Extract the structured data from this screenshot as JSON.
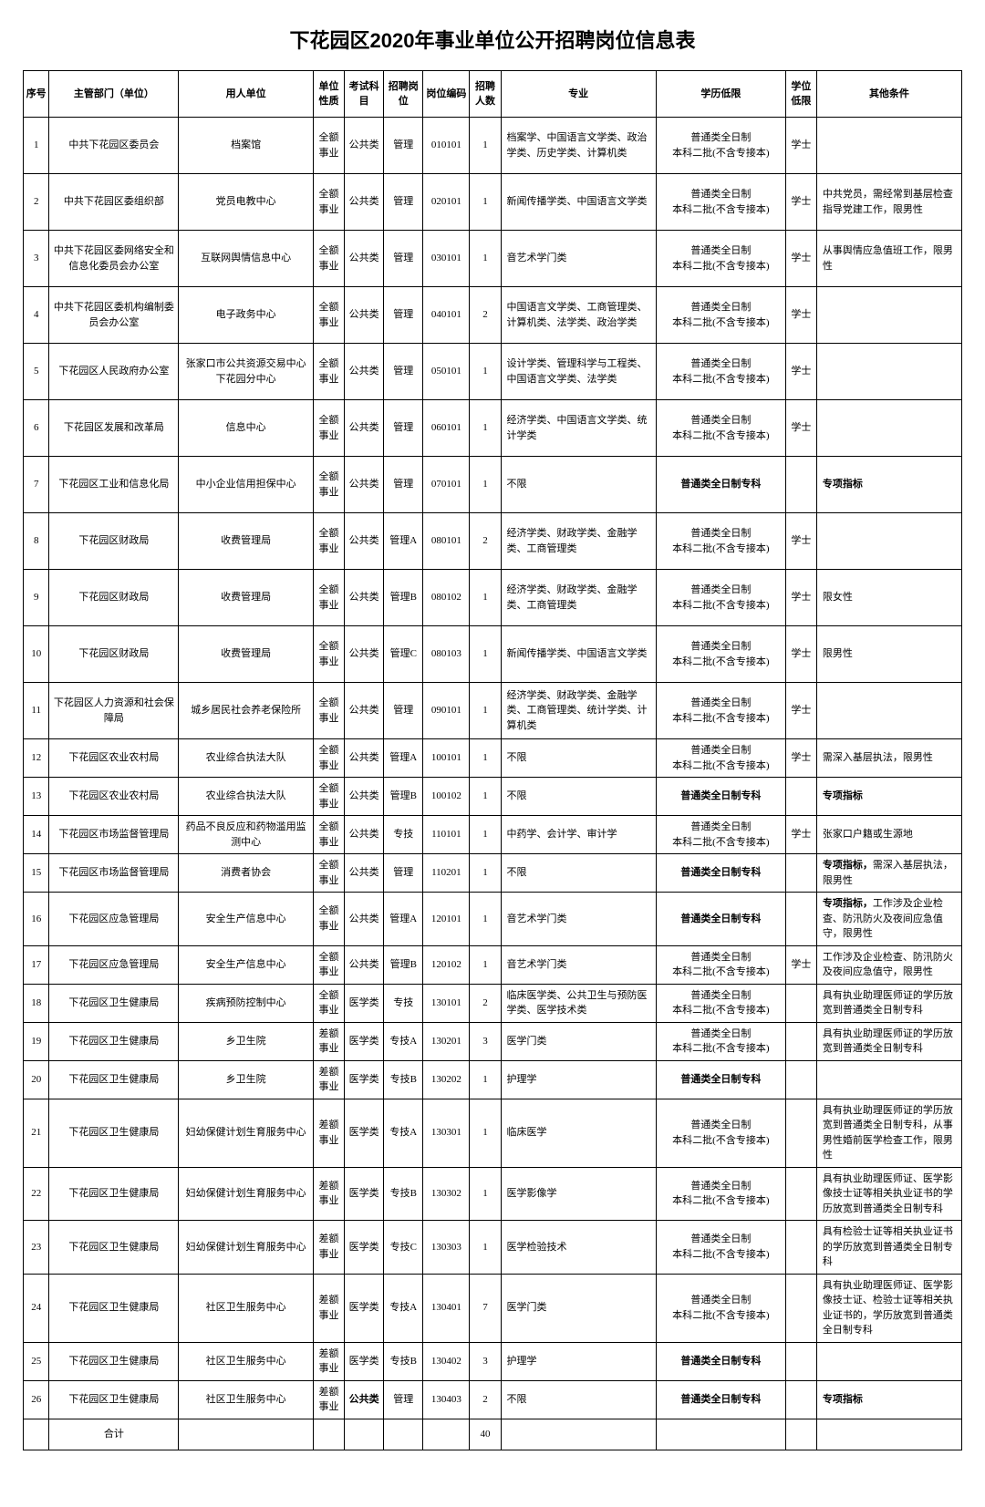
{
  "title": "下花园区2020年事业单位公开招聘岗位信息表",
  "headers": {
    "seq": "序号",
    "dept": "主管部门（单位）",
    "employer": "用人单位",
    "nature": "单位性质",
    "subject": "考试科目",
    "position": "招聘岗位",
    "code": "岗位编码",
    "count": "招聘人数",
    "major": "专业",
    "education": "学历低限",
    "degree": "学位低限",
    "other": "其他条件"
  },
  "edu_normal": "普通类全日制\n本科二批(不含专接本)",
  "edu_zhuanke_bold": "普通类全日制专科",
  "rows": [
    {
      "seq": "1",
      "dept": "中共下花园区委员会",
      "employer": "档案馆",
      "nature": "全额事业",
      "subject": "公共类",
      "position": "管理",
      "code": "010101",
      "count": "1",
      "major": "档案学、中国语言文学类、政治学类、历史学类、计算机类",
      "edu": "normal",
      "degree": "学士",
      "other": ""
    },
    {
      "seq": "2",
      "dept": "中共下花园区委组织部",
      "employer": "党员电教中心",
      "nature": "全额事业",
      "subject": "公共类",
      "position": "管理",
      "code": "020101",
      "count": "1",
      "major": "新闻传播学类、中国语言文学类",
      "edu": "normal",
      "degree": "学士",
      "other": "中共党员，需经常到基层检查指导党建工作，限男性"
    },
    {
      "seq": "3",
      "dept": "中共下花园区委网络安全和信息化委员会办公室",
      "employer": "互联网舆情信息中心",
      "nature": "全额事业",
      "subject": "公共类",
      "position": "管理",
      "code": "030101",
      "count": "1",
      "major": "音艺术学门类",
      "edu": "normal",
      "degree": "学士",
      "other": "从事舆情应急值班工作，限男性"
    },
    {
      "seq": "4",
      "dept": "中共下花园区委机构编制委员会办公室",
      "employer": "电子政务中心",
      "nature": "全额事业",
      "subject": "公共类",
      "position": "管理",
      "code": "040101",
      "count": "2",
      "major": "中国语言文学类、工商管理类、计算机类、法学类、政治学类",
      "edu": "normal",
      "degree": "学士",
      "other": ""
    },
    {
      "seq": "5",
      "dept": "下花园区人民政府办公室",
      "employer": "张家口市公共资源交易中心下花园分中心",
      "nature": "全额事业",
      "subject": "公共类",
      "position": "管理",
      "code": "050101",
      "count": "1",
      "major": "设计学类、管理科学与工程类、中国语言文学类、法学类",
      "edu": "normal",
      "degree": "学士",
      "other": ""
    },
    {
      "seq": "6",
      "dept": "下花园区发展和改革局",
      "employer": "信息中心",
      "nature": "全额事业",
      "subject": "公共类",
      "position": "管理",
      "code": "060101",
      "count": "1",
      "major": "经济学类、中国语言文学类、统计学类",
      "edu": "normal",
      "degree": "学士",
      "other": ""
    },
    {
      "seq": "7",
      "dept": "下花园区工业和信息化局",
      "employer": "中小企业信用担保中心",
      "nature": "全额事业",
      "subject": "公共类",
      "position": "管理",
      "code": "070101",
      "count": "1",
      "major": "不限",
      "edu": "zhuanke",
      "degree": "",
      "other": "专项指标",
      "other_bold": true
    },
    {
      "seq": "8",
      "dept": "下花园区财政局",
      "employer": "收费管理局",
      "nature": "全额事业",
      "subject": "公共类",
      "position": "管理A",
      "code": "080101",
      "count": "2",
      "major": "经济学类、财政学类、金融学类、工商管理类",
      "edu": "normal",
      "degree": "学士",
      "other": ""
    },
    {
      "seq": "9",
      "dept": "下花园区财政局",
      "employer": "收费管理局",
      "nature": "全额事业",
      "subject": "公共类",
      "position": "管理B",
      "code": "080102",
      "count": "1",
      "major": "经济学类、财政学类、金融学类、工商管理类",
      "edu": "normal",
      "degree": "学士",
      "other": "限女性"
    },
    {
      "seq": "10",
      "dept": "下花园区财政局",
      "employer": "收费管理局",
      "nature": "全额事业",
      "subject": "公共类",
      "position": "管理C",
      "code": "080103",
      "count": "1",
      "major": "新闻传播学类、中国语言文学类",
      "edu": "normal",
      "degree": "学士",
      "other": "限男性"
    },
    {
      "seq": "11",
      "dept": "下花园区人力资源和社会保障局",
      "employer": "城乡居民社会养老保险所",
      "nature": "全额事业",
      "subject": "公共类",
      "position": "管理",
      "code": "090101",
      "count": "1",
      "major": "经济学类、财政学类、金融学类、工商管理类、统计学类、计算机类",
      "edu": "normal",
      "degree": "学士",
      "other": ""
    },
    {
      "seq": "12",
      "dept": "下花园区农业农村局",
      "employer": "农业综合执法大队",
      "nature": "全额事业",
      "subject": "公共类",
      "position": "管理A",
      "code": "100101",
      "count": "1",
      "major": "不限",
      "edu": "normal",
      "degree": "学士",
      "other": "需深入基层执法，限男性"
    },
    {
      "seq": "13",
      "dept": "下花园区农业农村局",
      "employer": "农业综合执法大队",
      "nature": "全额事业",
      "subject": "公共类",
      "position": "管理B",
      "code": "100102",
      "count": "1",
      "major": "不限",
      "edu": "zhuanke",
      "degree": "",
      "other": "专项指标",
      "other_bold": true
    },
    {
      "seq": "14",
      "dept": "下花园区市场监督管理局",
      "employer": "药品不良反应和药物滥用监测中心",
      "nature": "全额事业",
      "subject": "公共类",
      "position": "专技",
      "code": "110101",
      "count": "1",
      "major": "中药学、会计学、审计学",
      "edu": "normal",
      "degree": "学士",
      "other": "张家口户籍或生源地"
    },
    {
      "seq": "15",
      "dept": "下花园区市场监督管理局",
      "employer": "消费者协会",
      "nature": "全额事业",
      "subject": "公共类",
      "position": "管理",
      "code": "110201",
      "count": "1",
      "major": "不限",
      "edu": "zhuanke",
      "degree": "",
      "other": "专项指标，需深入基层执法，限男性",
      "other_partial_bold": "专项指标，"
    },
    {
      "seq": "16",
      "dept": "下花园区应急管理局",
      "employer": "安全生产信息中心",
      "nature": "全额事业",
      "subject": "公共类",
      "position": "管理A",
      "code": "120101",
      "count": "1",
      "major": "音艺术学门类",
      "edu": "zhuanke",
      "degree": "",
      "other": "专项指标，工作涉及企业检查、防汛防火及夜间应急值守，限男性",
      "other_partial_bold": "专项指标，"
    },
    {
      "seq": "17",
      "dept": "下花园区应急管理局",
      "employer": "安全生产信息中心",
      "nature": "全额事业",
      "subject": "公共类",
      "position": "管理B",
      "code": "120102",
      "count": "1",
      "major": "音艺术学门类",
      "edu": "normal",
      "degree": "学士",
      "other": "工作涉及企业检查、防汛防火及夜间应急值守，限男性"
    },
    {
      "seq": "18",
      "dept": "下花园区卫生健康局",
      "employer": "疾病预防控制中心",
      "nature": "全额事业",
      "subject": "医学类",
      "position": "专技",
      "code": "130101",
      "count": "2",
      "major": "临床医学类、公共卫生与预防医学类、医学技术类",
      "edu": "normal",
      "degree": "",
      "other": "具有执业助理医师证的学历放宽到普通类全日制专科"
    },
    {
      "seq": "19",
      "dept": "下花园区卫生健康局",
      "employer": "乡卫生院",
      "nature": "差额事业",
      "subject": "医学类",
      "position": "专技A",
      "code": "130201",
      "count": "3",
      "major": "医学门类",
      "edu": "normal",
      "degree": "",
      "other": "具有执业助理医师证的学历放宽到普通类全日制专科"
    },
    {
      "seq": "20",
      "dept": "下花园区卫生健康局",
      "employer": "乡卫生院",
      "nature": "差额事业",
      "subject": "医学类",
      "position": "专技B",
      "code": "130202",
      "count": "1",
      "major": "护理学",
      "edu": "zhuanke",
      "degree": "",
      "other": ""
    },
    {
      "seq": "21",
      "dept": "下花园区卫生健康局",
      "employer": "妇幼保健计划生育服务中心",
      "nature": "差额事业",
      "subject": "医学类",
      "position": "专技A",
      "code": "130301",
      "count": "1",
      "major": "临床医学",
      "edu": "normal",
      "degree": "",
      "other": "具有执业助理医师证的学历放宽到普通类全日制专科，从事男性婚前医学检查工作，限男性"
    },
    {
      "seq": "22",
      "dept": "下花园区卫生健康局",
      "employer": "妇幼保健计划生育服务中心",
      "nature": "差额事业",
      "subject": "医学类",
      "position": "专技B",
      "code": "130302",
      "count": "1",
      "major": "医学影像学",
      "edu": "normal",
      "degree": "",
      "other": "具有执业助理医师证、医学影像技士证等相关执业证书的学历放宽到普通类全日制专科"
    },
    {
      "seq": "23",
      "dept": "下花园区卫生健康局",
      "employer": "妇幼保健计划生育服务中心",
      "nature": "差额事业",
      "subject": "医学类",
      "position": "专技C",
      "code": "130303",
      "count": "1",
      "major": "医学检验技术",
      "edu": "normal",
      "degree": "",
      "other": "具有检验士证等相关执业证书的学历放宽到普通类全日制专科"
    },
    {
      "seq": "24",
      "dept": "下花园区卫生健康局",
      "employer": "社区卫生服务中心",
      "nature": "差额事业",
      "subject": "医学类",
      "position": "专技A",
      "code": "130401",
      "count": "7",
      "major": "医学门类",
      "edu": "normal",
      "degree": "",
      "other": "具有执业助理医师证、医学影像技士证、检验士证等相关执业证书的，学历放宽到普通类全日制专科"
    },
    {
      "seq": "25",
      "dept": "下花园区卫生健康局",
      "employer": "社区卫生服务中心",
      "nature": "差额事业",
      "subject": "医学类",
      "position": "专技B",
      "code": "130402",
      "count": "3",
      "major": "护理学",
      "edu": "zhuanke",
      "degree": "",
      "other": ""
    },
    {
      "seq": "26",
      "dept": "下花园区卫生健康局",
      "employer": "社区卫生服务中心",
      "nature": "差额事业",
      "subject": "公共类",
      "subject_bold": true,
      "position": "管理",
      "code": "130403",
      "count": "2",
      "major": "不限",
      "edu": "zhuanke",
      "degree": "",
      "other": "专项指标",
      "other_bold": true
    }
  ],
  "total_label": "合计",
  "total_count": "40"
}
